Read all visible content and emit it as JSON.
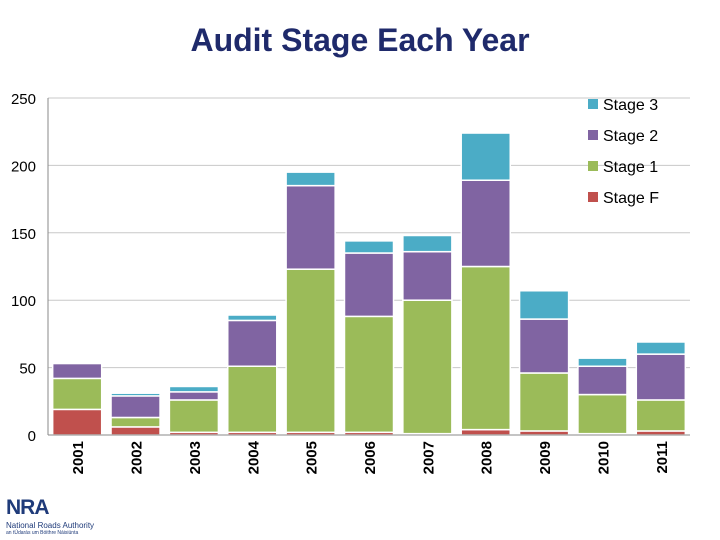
{
  "chart_data": {
    "type": "bar",
    "stacked": true,
    "title": "Audit Stage Each Year",
    "categories": [
      "2001",
      "2002",
      "2003",
      "2004",
      "2005",
      "2006",
      "2007",
      "2008",
      "2009",
      "2010",
      "2011"
    ],
    "series": [
      {
        "name": "Stage F",
        "color": "#c0504d",
        "values": [
          19,
          6,
          2,
          2,
          2,
          2,
          1,
          4,
          3,
          1,
          3
        ]
      },
      {
        "name": "Stage 1",
        "color": "#9bbb59",
        "values": [
          23,
          7,
          24,
          49,
          121,
          86,
          99,
          121,
          43,
          29,
          23
        ]
      },
      {
        "name": "Stage 2",
        "color": "#8064a2",
        "values": [
          11,
          16,
          6,
          34,
          62,
          47,
          36,
          64,
          40,
          21,
          34
        ]
      },
      {
        "name": "Stage 3",
        "color": "#4bacc6",
        "values": [
          0,
          2,
          4,
          4,
          10,
          9,
          12,
          35,
          21,
          6,
          9
        ]
      }
    ],
    "ylim": [
      0,
      250
    ],
    "yticks": [
      0,
      50,
      100,
      150,
      200,
      250
    ],
    "xlabel": "",
    "ylabel": "",
    "legend_position": "top-right",
    "legend_order": [
      "Stage 3",
      "Stage 2",
      "Stage 1",
      "Stage F"
    ]
  },
  "logo": {
    "name": "NRA",
    "subtitle": "National Roads Authority",
    "tagline": "an tÚdarás um Bóithre Náisiúnta"
  }
}
